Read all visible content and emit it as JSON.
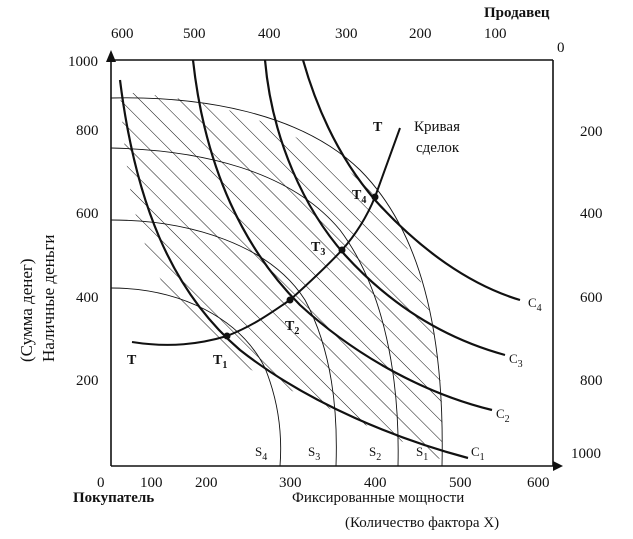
{
  "title_right": "Продавец",
  "buyer_label": "Покупатель",
  "x_axis_label": "Фиксированные мощности",
  "x_axis_sublabel": "(Количество фактора X)",
  "y_axis_label_line1": "(Сумма денег)",
  "y_axis_label_line2": "Наличные деньги",
  "contract_curve_label_line1": "Кривая",
  "contract_curve_label_line2": "сделок",
  "bottom_x_ticks": [
    "0",
    "100",
    "200",
    "300",
    "400",
    "500",
    "600"
  ],
  "top_x_ticks": [
    "600",
    "500",
    "400",
    "300",
    "200",
    "100",
    "0"
  ],
  "left_y_ticks": [
    "1000",
    "800",
    "600",
    "400",
    "200"
  ],
  "right_y_ticks": [
    "200",
    "400",
    "600",
    "800",
    "1000"
  ],
  "c_curves": [
    "C1",
    "C2",
    "C3",
    "C4"
  ],
  "s_curves": [
    "S1",
    "S2",
    "S3",
    "S4"
  ],
  "contract_points": [
    "T1",
    "T2",
    "T3",
    "T4"
  ],
  "contract_curve_end_label": "T",
  "contract_curve_start_label": "T"
}
